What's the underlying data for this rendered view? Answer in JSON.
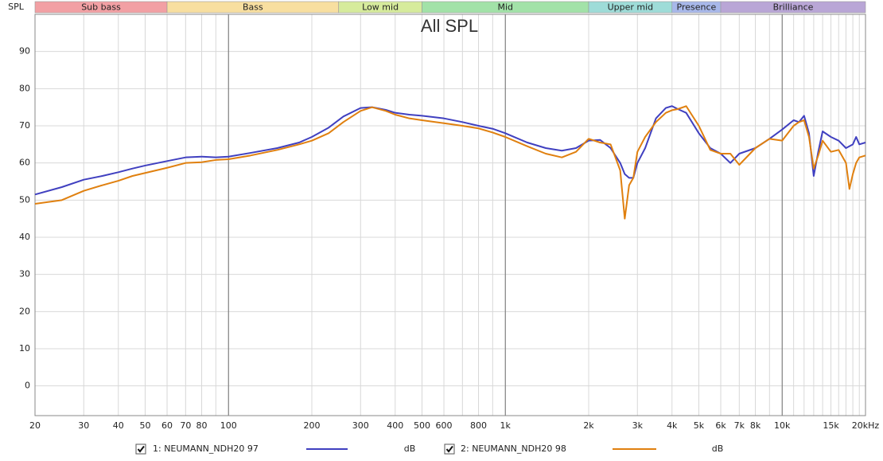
{
  "chart_data": {
    "type": "line",
    "title": "All SPL",
    "ylabel": "SPL",
    "xscale": "log",
    "xlim": [
      20,
      20000
    ],
    "ylim": [
      -8,
      100
    ],
    "xticks": [
      20,
      30,
      40,
      50,
      60,
      70,
      80,
      100,
      200,
      300,
      400,
      500,
      600,
      800,
      {
        "value": 1000,
        "label": "1k"
      },
      {
        "value": 2000,
        "label": "2k"
      },
      {
        "value": 3000,
        "label": "3k"
      },
      {
        "value": 4000,
        "label": "4k"
      },
      {
        "value": 5000,
        "label": "5k"
      },
      {
        "value": 6000,
        "label": "6k"
      },
      {
        "value": 7000,
        "label": "7k"
      },
      {
        "value": 8000,
        "label": "8k"
      },
      {
        "value": 10000,
        "label": "10k"
      },
      {
        "value": 15000,
        "label": "15k"
      },
      {
        "value": 20000,
        "label": "20kHz"
      }
    ],
    "xgrid_minor": [
      90,
      700,
      900,
      9000,
      11000,
      12000,
      13000,
      14000,
      16000,
      17000,
      18000,
      19000
    ],
    "xgrid_major": [
      100,
      1000,
      10000
    ],
    "yticks": [
      0,
      10,
      20,
      30,
      40,
      50,
      60,
      70,
      80,
      90
    ],
    "grid": true,
    "bands": [
      {
        "label": "Sub bass",
        "from": 20,
        "to": 60,
        "color": "#f2a0a4"
      },
      {
        "label": "Bass",
        "from": 60,
        "to": 250,
        "color": "#f8dfa0"
      },
      {
        "label": "Low mid",
        "from": 250,
        "to": 500,
        "color": "#d6eb9c"
      },
      {
        "label": "Mid",
        "from": 500,
        "to": 2000,
        "color": "#a2e2a8"
      },
      {
        "label": "Upper mid",
        "from": 2000,
        "to": 4000,
        "color": "#9edcd8"
      },
      {
        "label": "Presence",
        "from": 4000,
        "to": 6000,
        "color": "#a8b8ea"
      },
      {
        "label": "Brilliance",
        "from": 6000,
        "to": 20000,
        "color": "#b9a6d6"
      }
    ],
    "x": [
      20,
      25,
      30,
      35,
      40,
      45,
      50,
      60,
      70,
      80,
      90,
      100,
      120,
      150,
      180,
      200,
      230,
      260,
      300,
      330,
      370,
      400,
      450,
      500,
      600,
      700,
      800,
      900,
      1000,
      1200,
      1400,
      1600,
      1800,
      2000,
      2200,
      2400,
      2600,
      2700,
      2800,
      2900,
      3000,
      3200,
      3500,
      3800,
      4000,
      4200,
      4500,
      5000,
      5500,
      6000,
      6500,
      7000,
      8000,
      9000,
      10000,
      11000,
      11500,
      12000,
      12500,
      13000,
      13500,
      14000,
      15000,
      16000,
      17000,
      17500,
      18000,
      18500,
      19000,
      20000
    ],
    "series": [
      {
        "name": "1: NEUMANN_NDH20 97",
        "unit": "dB",
        "color": "#4040c0",
        "values": [
          51.5,
          53.5,
          55.5,
          56.5,
          57.5,
          58.5,
          59.3,
          60.5,
          61.5,
          61.7,
          61.5,
          61.7,
          62.7,
          64,
          65.5,
          67,
          69.5,
          72.5,
          74.8,
          75,
          74.3,
          73.5,
          73,
          72.7,
          72,
          71,
          70,
          69.2,
          68,
          65.5,
          64,
          63.3,
          64,
          66,
          66.2,
          64,
          60,
          57,
          56,
          56,
          60,
          64,
          72,
          74.8,
          75.3,
          74.5,
          73.5,
          68,
          64,
          62.5,
          60,
          62.5,
          64,
          66.5,
          69,
          71.5,
          71,
          72.7,
          68,
          56.5,
          63,
          68.5,
          67,
          66,
          64,
          64.5,
          65,
          67,
          65,
          65.5
        ]
      },
      {
        "name": "2: NEUMANN_NDH20 98",
        "unit": "dB",
        "color": "#e0800f",
        "values": [
          49,
          50,
          52.5,
          54,
          55.2,
          56.5,
          57.3,
          58.7,
          60,
          60.2,
          60.8,
          61,
          62,
          63.5,
          65,
          66,
          68,
          71,
          74,
          75,
          74,
          73,
          72,
          71.5,
          70.7,
          70,
          69.3,
          68.2,
          67,
          64.5,
          62.5,
          61.5,
          63,
          66.5,
          65.5,
          65,
          58,
          45,
          54,
          56,
          63,
          67,
          71,
          73.5,
          74.2,
          74.5,
          75.3,
          70,
          63.5,
          62.5,
          62.5,
          59.5,
          64,
          66.5,
          66,
          70,
          71,
          71.5,
          67,
          58.5,
          62,
          66,
          63,
          63.5,
          60,
          53,
          57,
          60,
          61.5,
          62
        ]
      }
    ]
  }
}
